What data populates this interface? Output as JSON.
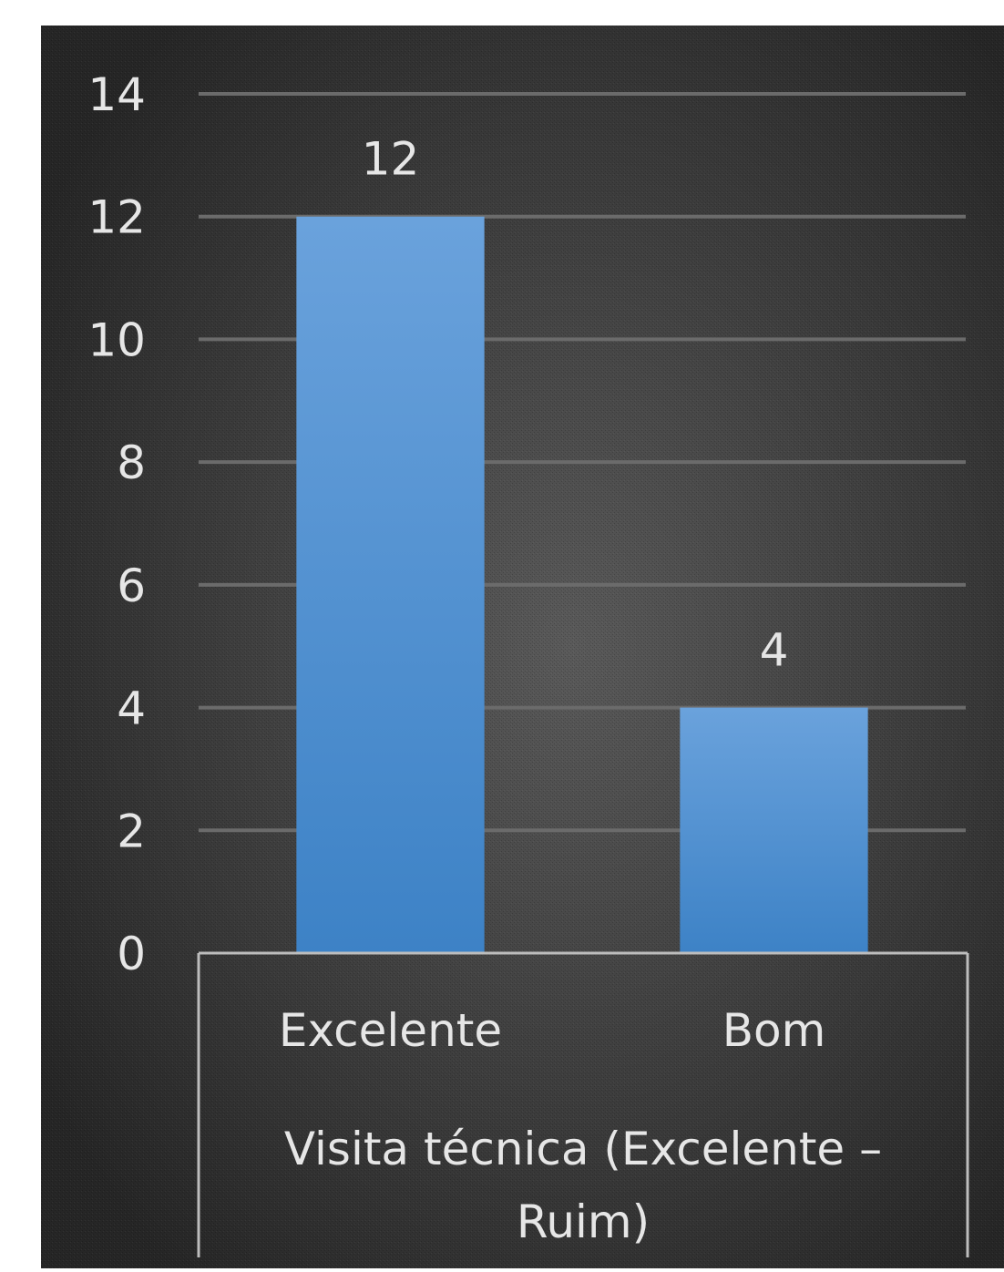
{
  "chart_data": {
    "type": "bar",
    "categories": [
      "Excelente",
      "Bom"
    ],
    "values": [
      12,
      4
    ],
    "data_labels": [
      "12",
      "4"
    ],
    "y_ticks": [
      "0",
      "2",
      "4",
      "6",
      "8",
      "10",
      "12",
      "14"
    ],
    "ylim": [
      0,
      14
    ],
    "xlabel_lines": [
      "Visita técnica (Excelente –",
      "Ruim)"
    ],
    "title": "",
    "ylabel": "",
    "grid": true,
    "legend": "none"
  },
  "colors": {
    "background_center": "#5a5a5a",
    "background_edge": "#262626",
    "bar_top": "#6aa2dc",
    "bar_bottom": "#3d82c6",
    "gridline": "#6b6b6b",
    "text": "#e6e6e6",
    "table_border": "#bdbdbd"
  }
}
